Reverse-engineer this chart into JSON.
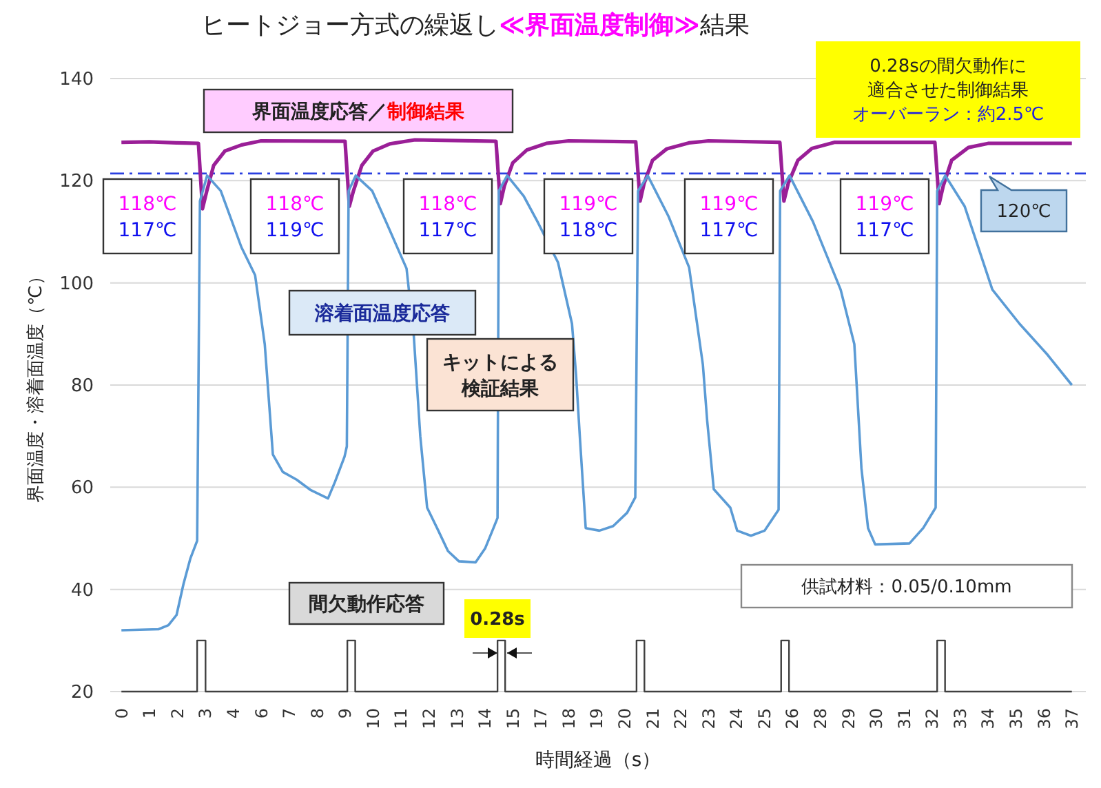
{
  "chart_data": {
    "type": "line",
    "title": "ヒートジョー方式の繰返し≪界面温度制御≫結果",
    "xlabel": "時間経過（s）",
    "ylabel": "界面温度・溶着面温度（℃）",
    "xlim": [
      -0.44,
      37.95
    ],
    "xticks": [
      {
        "value": 0,
        "label": "0"
      },
      {
        "value": 1.1,
        "label": "1"
      },
      {
        "value": 2.2,
        "label": "2"
      },
      {
        "value": 3.3,
        "label": "3"
      },
      {
        "value": 4.4,
        "label": "4"
      },
      {
        "value": 5.5,
        "label": "6"
      },
      {
        "value": 6.6,
        "label": "7"
      },
      {
        "value": 7.7,
        "label": "8"
      },
      {
        "value": 8.8,
        "label": "9"
      },
      {
        "value": 9.9,
        "label": "10"
      },
      {
        "value": 11,
        "label": "11"
      },
      {
        "value": 12.1,
        "label": "12"
      },
      {
        "value": 13.2,
        "label": "13"
      },
      {
        "value": 14.3,
        "label": "14"
      },
      {
        "value": 15.4,
        "label": "15"
      },
      {
        "value": 16.5,
        "label": "17"
      },
      {
        "value": 17.6,
        "label": "18"
      },
      {
        "value": 18.7,
        "label": "19"
      },
      {
        "value": 19.8,
        "label": "20"
      },
      {
        "value": 20.9,
        "label": "21"
      },
      {
        "value": 22,
        "label": "22"
      },
      {
        "value": 23.1,
        "label": "23"
      },
      {
        "value": 24.2,
        "label": "24"
      },
      {
        "value": 25.3,
        "label": "25"
      },
      {
        "value": 26.4,
        "label": "26"
      },
      {
        "value": 27.5,
        "label": "28"
      },
      {
        "value": 28.6,
        "label": "29"
      },
      {
        "value": 29.7,
        "label": "30"
      },
      {
        "value": 30.8,
        "label": "31"
      },
      {
        "value": 31.9,
        "label": "32"
      },
      {
        "value": 33,
        "label": "33"
      },
      {
        "value": 34.1,
        "label": "34"
      },
      {
        "value": 35.2,
        "label": "35"
      },
      {
        "value": 36.3,
        "label": "36"
      },
      {
        "value": 37.4,
        "label": "37"
      }
    ],
    "ylim": [
      20,
      140
    ],
    "yticks": [
      20,
      40,
      60,
      80,
      100,
      120,
      140
    ],
    "grid": "y",
    "series": [
      {
        "type": "line",
        "color": "#9a1f97",
        "x": [
          0,
          1.1,
          2.2,
          3.03,
          3.19,
          3.36,
          3.63,
          4.07,
          4.73,
          5.5,
          8.8,
          8.97,
          9.13,
          9.46,
          9.9,
          10.56,
          11.55,
          14.74,
          14.91,
          15.07,
          15.4,
          15.95,
          16.72,
          17.6,
          20.24,
          20.41,
          20.57,
          20.9,
          21.45,
          22.33,
          23.1,
          25.91,
          26.07,
          26.24,
          26.62,
          27.17,
          28.05,
          32.01,
          32.18,
          32.34,
          32.67,
          33.33,
          34.1,
          37.4
        ],
        "values": [
          127.5,
          127.6,
          127.4,
          127.3,
          114.5,
          118,
          123,
          125.8,
          127,
          127.8,
          127.7,
          115,
          118,
          123,
          125.8,
          127.2,
          128,
          127.7,
          115.5,
          119,
          123.5,
          126,
          127.3,
          127.8,
          127.6,
          116,
          119.5,
          124,
          126.2,
          127.4,
          127.8,
          127.5,
          116,
          119.5,
          124,
          126.3,
          127.5,
          127.5,
          115.5,
          119,
          124,
          126.5,
          127.3,
          127.3
        ]
      },
      {
        "type": "line",
        "color": "#5b9bd5",
        "x": [
          0,
          1.46,
          1.85,
          2.17,
          2.44,
          2.71,
          2.98,
          3.09,
          3.37,
          3.91,
          4.72,
          5.26,
          5.64,
          5.96,
          6.35,
          6.89,
          7.43,
          8.13,
          8.4,
          8.78,
          8.87,
          8.94,
          9.22,
          9.87,
          10.41,
          11.22,
          11.5,
          11.76,
          12.03,
          12.47,
          12.85,
          13.28,
          13.94,
          14.31,
          14.64,
          14.8,
          14.85,
          15.18,
          15.83,
          16.37,
          17.18,
          17.73,
          17.89,
          18.05,
          18.27,
          18.81,
          19.35,
          19.9,
          20.22,
          20.33,
          20.71,
          21.53,
          22.34,
          22.88,
          23.05,
          23.31,
          23.96,
          24.23,
          24.77,
          25.31,
          25.86,
          25.92,
          26.29,
          27.21,
          28.3,
          28.84,
          29.12,
          29.38,
          29.66,
          31.01,
          31.55,
          32.04,
          32.1,
          32.42,
          33.18,
          34.27,
          35.34,
          36.43,
          37.4
        ],
        "values": [
          32,
          32.2,
          33,
          35,
          41,
          46,
          49.5,
          116,
          121,
          118,
          107,
          101.5,
          88,
          66.4,
          63,
          61.5,
          59.5,
          57.8,
          61,
          66,
          68,
          118,
          121,
          118,
          112,
          102.8,
          90,
          70,
          56,
          51.5,
          47.5,
          45.5,
          45.3,
          48,
          52,
          54,
          118,
          121,
          117,
          112,
          104,
          92,
          82,
          69,
          52,
          51.5,
          52.4,
          55,
          58,
          118,
          121,
          113,
          103,
          84,
          73,
          59.6,
          56,
          51.5,
          50.5,
          51.5,
          55.6,
          118,
          121,
          112,
          98.7,
          88,
          63.7,
          52,
          48.8,
          49,
          52,
          56,
          118,
          121,
          115,
          98.7,
          92,
          86,
          80
        ]
      },
      {
        "type": "step",
        "color": "#404040",
        "x": [
          0,
          2.98,
          3.31,
          8.89,
          9.2,
          14.8,
          15.1,
          20.27,
          20.58,
          25.96,
          26.27,
          32.1,
          32.41,
          37.4
        ],
        "values": [
          20,
          30,
          20,
          30,
          20,
          30,
          20,
          30,
          20,
          30,
          20,
          30,
          20,
          20
        ]
      }
    ],
    "ref_lines": [
      {
        "axis": "y",
        "value": 121.4,
        "label": "120℃",
        "color": "#2a3fe0",
        "line_style": "dashdot"
      }
    ],
    "annotations": [
      "界面温度応答／制御結果",
      "0.28sの間欠動作に適合させた制御結果オーバーラン：約2.5℃",
      "118℃\n117℃",
      "118℃\n119℃",
      "118℃\n117℃",
      "119℃\n118℃",
      "119℃\n117℃",
      "119℃\n117℃",
      "溶着面温度応答",
      "キットによる検証結果",
      "間欠動作応答",
      "0.28s",
      "供試材料：0.05/0.10mm"
    ]
  }
}
